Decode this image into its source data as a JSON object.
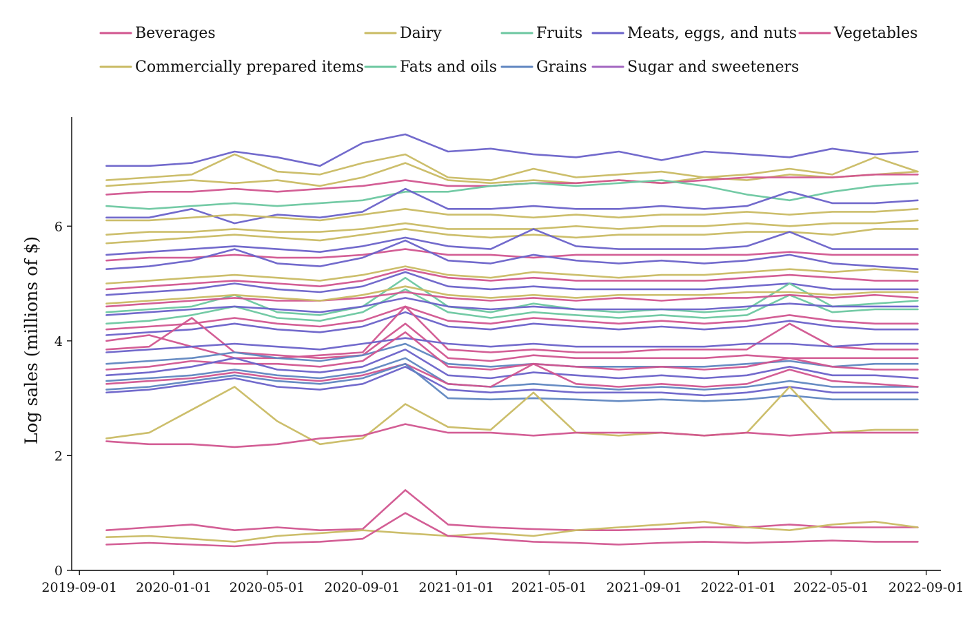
{
  "chart_data": {
    "type": "line",
    "title": "",
    "xlabel": "",
    "ylabel": "Log sales (millions of $)",
    "xlim": [
      "2019-08-22",
      "2022-09-20"
    ],
    "ylim": [
      0,
      7.9
    ],
    "x_ticks": [
      "2019-09-01",
      "2020-01-01",
      "2020-05-01",
      "2020-09-01",
      "2021-01-01",
      "2021-05-01",
      "2021-09-01",
      "2022-01-01",
      "2022-05-01",
      "2022-09-01"
    ],
    "y_ticks": [
      0,
      2,
      4,
      6
    ],
    "grid": false,
    "legend_position": "top",
    "x_start": "2019-10-06",
    "x_end": "2022-08-21",
    "legend": [
      {
        "name": "Beverages",
        "color": "#d1558f"
      },
      {
        "name": "Dairy",
        "color": "#c9bb63"
      },
      {
        "name": "Fruits",
        "color": "#6cc7a0"
      },
      {
        "name": "Meats, eggs, and nuts",
        "color": "#6a62c9"
      },
      {
        "name": "Vegetables",
        "color": "#d1558f"
      },
      {
        "name": "Commercially prepared items",
        "color": "#c9bb63"
      },
      {
        "name": "Fats and oils",
        "color": "#6cc7a0"
      },
      {
        "name": "Grains",
        "color": "#5f86c0"
      },
      {
        "name": "Sugar and sweeteners",
        "color": "#a366c0"
      }
    ],
    "series": [
      {
        "color": "#6a62c9",
        "values": [
          7.05,
          7.05,
          7.1,
          7.3,
          7.2,
          7.05,
          7.45,
          7.6,
          7.3,
          7.35,
          7.25,
          7.2,
          7.3,
          7.15,
          7.3,
          7.25,
          7.2,
          7.35,
          7.25,
          7.3
        ]
      },
      {
        "color": "#c9bb63",
        "values": [
          6.8,
          6.85,
          6.9,
          7.25,
          6.95,
          6.9,
          7.1,
          7.25,
          6.85,
          6.8,
          7.0,
          6.85,
          6.9,
          6.95,
          6.85,
          6.9,
          7.0,
          6.9,
          7.2,
          6.95
        ]
      },
      {
        "color": "#c9bb63",
        "values": [
          6.7,
          6.75,
          6.8,
          6.75,
          6.8,
          6.7,
          6.85,
          7.1,
          6.8,
          6.75,
          6.8,
          6.75,
          6.8,
          6.75,
          6.85,
          6.8,
          6.9,
          6.85,
          6.9,
          6.95
        ]
      },
      {
        "color": "#d1558f",
        "values": [
          6.55,
          6.6,
          6.6,
          6.65,
          6.6,
          6.65,
          6.7,
          6.8,
          6.7,
          6.7,
          6.75,
          6.75,
          6.8,
          6.75,
          6.8,
          6.85,
          6.85,
          6.85,
          6.9,
          6.9
        ]
      },
      {
        "color": "#6cc7a0",
        "values": [
          6.35,
          6.3,
          6.35,
          6.4,
          6.35,
          6.4,
          6.45,
          6.6,
          6.6,
          6.7,
          6.75,
          6.7,
          6.75,
          6.8,
          6.7,
          6.55,
          6.45,
          6.6,
          6.7,
          6.75
        ]
      },
      {
        "color": "#6a62c9",
        "values": [
          6.15,
          6.15,
          6.3,
          6.05,
          6.2,
          6.15,
          6.25,
          6.65,
          6.3,
          6.3,
          6.35,
          6.3,
          6.3,
          6.35,
          6.3,
          6.35,
          6.6,
          6.4,
          6.4,
          6.45
        ]
      },
      {
        "color": "#c9bb63",
        "values": [
          6.1,
          6.1,
          6.15,
          6.2,
          6.15,
          6.1,
          6.2,
          6.3,
          6.2,
          6.2,
          6.15,
          6.2,
          6.15,
          6.2,
          6.2,
          6.25,
          6.2,
          6.25,
          6.25,
          6.3
        ]
      },
      {
        "color": "#c9bb63",
        "values": [
          5.85,
          5.9,
          5.9,
          5.95,
          5.9,
          5.9,
          5.95,
          6.05,
          5.95,
          5.95,
          5.95,
          6.0,
          5.95,
          6.0,
          6.0,
          6.05,
          6.0,
          6.05,
          6.05,
          6.1
        ]
      },
      {
        "color": "#c9bb63",
        "values": [
          5.7,
          5.75,
          5.8,
          5.85,
          5.8,
          5.75,
          5.85,
          5.95,
          5.85,
          5.8,
          5.85,
          5.8,
          5.85,
          5.85,
          5.85,
          5.9,
          5.9,
          5.85,
          5.95,
          5.95
        ]
      },
      {
        "color": "#6a62c9",
        "values": [
          5.5,
          5.55,
          5.6,
          5.65,
          5.6,
          5.55,
          5.65,
          5.8,
          5.65,
          5.6,
          5.95,
          5.65,
          5.6,
          5.6,
          5.6,
          5.65,
          5.9,
          5.6,
          5.6,
          5.6
        ]
      },
      {
        "color": "#d1558f",
        "values": [
          5.4,
          5.45,
          5.45,
          5.5,
          5.45,
          5.45,
          5.5,
          5.6,
          5.5,
          5.5,
          5.45,
          5.5,
          5.5,
          5.5,
          5.5,
          5.5,
          5.55,
          5.5,
          5.5,
          5.5
        ]
      },
      {
        "color": "#6a62c9",
        "values": [
          5.25,
          5.3,
          5.4,
          5.6,
          5.35,
          5.3,
          5.45,
          5.75,
          5.4,
          5.35,
          5.5,
          5.4,
          5.35,
          5.4,
          5.35,
          5.4,
          5.5,
          5.35,
          5.3,
          5.25
        ]
      },
      {
        "color": "#c9bb63",
        "values": [
          5.0,
          5.05,
          5.1,
          5.15,
          5.1,
          5.05,
          5.15,
          5.3,
          5.15,
          5.1,
          5.2,
          5.15,
          5.1,
          5.15,
          5.15,
          5.2,
          5.25,
          5.2,
          5.25,
          5.2
        ]
      },
      {
        "color": "#d1558f",
        "values": [
          4.9,
          4.95,
          5.0,
          5.05,
          5.0,
          4.95,
          5.05,
          5.25,
          5.1,
          5.05,
          5.1,
          5.05,
          5.05,
          5.05,
          5.05,
          5.1,
          5.15,
          5.1,
          5.05,
          5.05
        ]
      },
      {
        "color": "#6a62c9",
        "values": [
          4.8,
          4.85,
          4.9,
          5.0,
          4.9,
          4.85,
          4.95,
          5.2,
          4.95,
          4.9,
          4.95,
          4.9,
          4.9,
          4.9,
          4.9,
          4.95,
          5.0,
          4.9,
          4.9,
          4.9
        ]
      },
      {
        "color": "#6cc7a0",
        "values": [
          4.5,
          4.55,
          4.6,
          4.8,
          4.5,
          4.45,
          4.6,
          5.1,
          4.6,
          4.5,
          4.65,
          4.55,
          4.5,
          4.55,
          4.5,
          4.55,
          5.0,
          4.6,
          4.65,
          4.7
        ]
      },
      {
        "color": "#6cc7a0",
        "values": [
          4.3,
          4.35,
          4.45,
          4.6,
          4.4,
          4.35,
          4.5,
          4.9,
          4.5,
          4.4,
          4.5,
          4.45,
          4.4,
          4.45,
          4.4,
          4.45,
          4.8,
          4.5,
          4.55,
          4.55
        ]
      },
      {
        "color": "#d1558f",
        "values": [
          4.6,
          4.65,
          4.7,
          4.75,
          4.7,
          4.7,
          4.75,
          4.85,
          4.75,
          4.7,
          4.75,
          4.7,
          4.75,
          4.7,
          4.75,
          4.75,
          4.8,
          4.75,
          4.8,
          4.75
        ]
      },
      {
        "color": "#c9bb63",
        "values": [
          4.65,
          4.7,
          4.75,
          4.8,
          4.75,
          4.7,
          4.8,
          4.95,
          4.8,
          4.75,
          4.8,
          4.75,
          4.8,
          4.8,
          4.8,
          4.85,
          4.85,
          4.8,
          4.85,
          4.85
        ]
      },
      {
        "color": "#6a62c9",
        "values": [
          4.45,
          4.5,
          4.55,
          4.6,
          4.55,
          4.5,
          4.6,
          4.75,
          4.6,
          4.55,
          4.6,
          4.55,
          4.55,
          4.55,
          4.55,
          4.6,
          4.65,
          4.6,
          4.6,
          4.6
        ]
      },
      {
        "color": "#d1558f",
        "values": [
          4.2,
          4.25,
          4.3,
          4.4,
          4.3,
          4.25,
          4.35,
          4.6,
          4.35,
          4.3,
          4.4,
          4.35,
          4.3,
          4.35,
          4.3,
          4.35,
          4.45,
          4.35,
          4.3,
          4.3
        ]
      },
      {
        "color": "#6a62c9",
        "values": [
          4.1,
          4.15,
          4.2,
          4.3,
          4.2,
          4.15,
          4.25,
          4.5,
          4.25,
          4.2,
          4.3,
          4.25,
          4.2,
          4.25,
          4.2,
          4.25,
          4.35,
          4.25,
          4.2,
          4.2
        ]
      },
      {
        "color": "#d1558f",
        "values": [
          4.0,
          4.1,
          3.9,
          3.7,
          3.7,
          3.75,
          3.8,
          4.6,
          3.85,
          3.8,
          3.85,
          3.8,
          3.8,
          3.85,
          3.85,
          3.85,
          4.3,
          3.9,
          3.85,
          3.85
        ]
      },
      {
        "color": "#d1558f",
        "values": [
          3.85,
          3.9,
          4.4,
          3.8,
          3.75,
          3.7,
          3.75,
          4.3,
          3.7,
          3.65,
          3.75,
          3.7,
          3.7,
          3.7,
          3.7,
          3.75,
          3.7,
          3.7,
          3.7,
          3.7
        ]
      },
      {
        "color": "#6a62c9",
        "values": [
          3.8,
          3.85,
          3.9,
          3.95,
          3.9,
          3.85,
          3.95,
          4.05,
          3.95,
          3.9,
          3.95,
          3.9,
          3.9,
          3.9,
          3.9,
          3.95,
          3.95,
          3.9,
          3.95,
          3.95
        ]
      },
      {
        "color": "#5f86c0",
        "values": [
          3.6,
          3.65,
          3.7,
          3.8,
          3.7,
          3.65,
          3.75,
          3.95,
          3.6,
          3.55,
          3.6,
          3.55,
          3.55,
          3.55,
          3.55,
          3.6,
          3.65,
          3.55,
          3.6,
          3.6
        ]
      },
      {
        "color": "#d1558f",
        "values": [
          3.5,
          3.55,
          3.65,
          3.6,
          3.6,
          3.55,
          3.65,
          4.15,
          3.55,
          3.5,
          3.6,
          3.55,
          3.5,
          3.55,
          3.5,
          3.55,
          3.7,
          3.55,
          3.5,
          3.5
        ]
      },
      {
        "color": "#6a62c9",
        "values": [
          3.4,
          3.45,
          3.55,
          3.7,
          3.5,
          3.45,
          3.55,
          3.85,
          3.4,
          3.35,
          3.45,
          3.4,
          3.35,
          3.4,
          3.35,
          3.4,
          3.55,
          3.4,
          3.4,
          3.35
        ]
      },
      {
        "color": "#5f86c0",
        "values": [
          3.3,
          3.35,
          3.4,
          3.5,
          3.4,
          3.35,
          3.45,
          3.7,
          3.25,
          3.2,
          3.25,
          3.2,
          3.15,
          3.2,
          3.15,
          3.2,
          3.3,
          3.2,
          3.2,
          3.2
        ]
      },
      {
        "color": "#d1558f",
        "values": [
          3.25,
          3.3,
          3.35,
          3.45,
          3.35,
          3.3,
          3.4,
          3.6,
          3.25,
          3.2,
          3.6,
          3.25,
          3.2,
          3.25,
          3.2,
          3.25,
          3.5,
          3.3,
          3.25,
          3.2
        ]
      },
      {
        "color": "#6a62c9",
        "values": [
          3.1,
          3.15,
          3.25,
          3.35,
          3.2,
          3.15,
          3.25,
          3.55,
          3.15,
          3.1,
          3.15,
          3.1,
          3.1,
          3.1,
          3.05,
          3.1,
          3.2,
          3.1,
          3.1,
          3.1
        ]
      },
      {
        "color": "#5f86c0",
        "values": [
          3.15,
          3.2,
          3.3,
          3.4,
          3.3,
          3.25,
          3.35,
          3.6,
          3.0,
          2.98,
          3.0,
          2.98,
          2.95,
          2.98,
          2.95,
          2.98,
          3.05,
          2.98,
          2.98,
          2.98
        ]
      },
      {
        "color": "#c9bb63",
        "values": [
          2.3,
          2.4,
          2.8,
          3.2,
          2.6,
          2.2,
          2.3,
          2.9,
          2.5,
          2.45,
          3.1,
          2.4,
          2.35,
          2.4,
          2.35,
          2.4,
          3.2,
          2.4,
          2.45,
          2.45
        ]
      },
      {
        "color": "#d1558f",
        "values": [
          2.25,
          2.2,
          2.2,
          2.15,
          2.2,
          2.3,
          2.35,
          2.55,
          2.4,
          2.4,
          2.35,
          2.4,
          2.4,
          2.4,
          2.35,
          2.4,
          2.35,
          2.4,
          2.4,
          2.4
        ]
      },
      {
        "color": "#d1558f",
        "values": [
          0.7,
          0.75,
          0.8,
          0.7,
          0.75,
          0.7,
          0.72,
          1.4,
          0.8,
          0.75,
          0.72,
          0.7,
          0.7,
          0.72,
          0.75,
          0.75,
          0.8,
          0.75,
          0.75,
          0.75
        ]
      },
      {
        "color": "#c9bb63",
        "values": [
          0.58,
          0.6,
          0.55,
          0.5,
          0.6,
          0.65,
          0.7,
          0.65,
          0.6,
          0.65,
          0.6,
          0.7,
          0.75,
          0.8,
          0.85,
          0.75,
          0.7,
          0.8,
          0.85,
          0.75
        ]
      },
      {
        "color": "#d1558f",
        "values": [
          0.45,
          0.48,
          0.45,
          0.42,
          0.48,
          0.5,
          0.55,
          1.0,
          0.6,
          0.55,
          0.5,
          0.48,
          0.45,
          0.48,
          0.5,
          0.48,
          0.5,
          0.52,
          0.5,
          0.5
        ]
      }
    ]
  }
}
